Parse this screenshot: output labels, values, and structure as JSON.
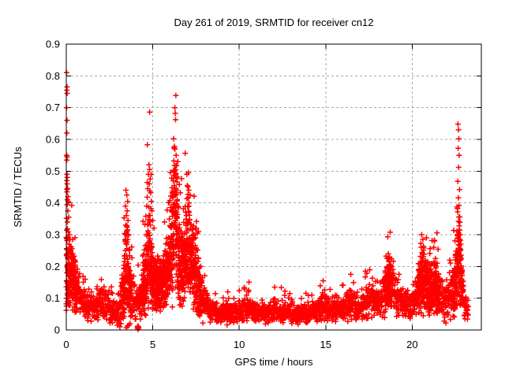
{
  "chart_data": {
    "type": "scatter",
    "title": "Day 261 of 2019, SRMTID for receiver cn12",
    "xlabel": "GPS time / hours",
    "ylabel": "SRMTID / TECUs",
    "xlim": [
      0,
      24
    ],
    "ylim": [
      0,
      0.9
    ],
    "xticks": [
      0,
      5,
      10,
      15,
      20
    ],
    "xtick_labels": [
      "0",
      "5",
      "10",
      "15",
      "20"
    ],
    "yticks": [
      0,
      0.1,
      0.2,
      0.3,
      0.4,
      0.5,
      0.6,
      0.7,
      0.8,
      0.9
    ],
    "ytick_labels": [
      "0",
      "0.1",
      "0.2",
      "0.3",
      "0.4",
      "0.5",
      "0.6",
      "0.7",
      "0.8",
      "0.9"
    ],
    "grid": true,
    "grid_color": "#a8a8a8",
    "legend": "none",
    "marker": "plus",
    "marker_color": "#ff0000",
    "series": [
      {
        "name": "SRMTID cn12",
        "seed": 261,
        "step": 0.01,
        "x_end": 23.25,
        "baseline_profile": [
          [
            0.0,
            0.2,
            0.18
          ],
          [
            0.15,
            0.17,
            0.13
          ],
          [
            0.35,
            0.17,
            0.11
          ],
          [
            0.55,
            0.13,
            0.09
          ],
          [
            0.8,
            0.09,
            0.06
          ],
          [
            1.2,
            0.075,
            0.05
          ],
          [
            1.6,
            0.07,
            0.05
          ],
          [
            2.0,
            0.085,
            0.06
          ],
          [
            2.5,
            0.065,
            0.05
          ],
          [
            3.0,
            0.05,
            0.045
          ],
          [
            3.3,
            0.09,
            0.09
          ],
          [
            3.5,
            0.2,
            0.2
          ],
          [
            3.7,
            0.13,
            0.12
          ],
          [
            3.9,
            0.08,
            0.05
          ],
          [
            4.3,
            0.09,
            0.06
          ],
          [
            4.6,
            0.17,
            0.15
          ],
          [
            4.8,
            0.26,
            0.2
          ],
          [
            5.0,
            0.17,
            0.12
          ],
          [
            5.3,
            0.12,
            0.08
          ],
          [
            5.6,
            0.15,
            0.1
          ],
          [
            5.9,
            0.19,
            0.13
          ],
          [
            6.15,
            0.3,
            0.24
          ],
          [
            6.3,
            0.37,
            0.26
          ],
          [
            6.5,
            0.23,
            0.18
          ],
          [
            6.7,
            0.19,
            0.13
          ],
          [
            6.9,
            0.24,
            0.15
          ],
          [
            7.1,
            0.27,
            0.15
          ],
          [
            7.35,
            0.19,
            0.13
          ],
          [
            7.6,
            0.15,
            0.12
          ],
          [
            7.9,
            0.09,
            0.07
          ],
          [
            8.3,
            0.06,
            0.04
          ],
          [
            9.0,
            0.05,
            0.03
          ],
          [
            9.6,
            0.055,
            0.035
          ],
          [
            10.2,
            0.06,
            0.04
          ],
          [
            10.6,
            0.07,
            0.045
          ],
          [
            11.0,
            0.05,
            0.032
          ],
          [
            11.6,
            0.05,
            0.032
          ],
          [
            12.0,
            0.06,
            0.04
          ],
          [
            12.6,
            0.055,
            0.038
          ],
          [
            13.2,
            0.05,
            0.035
          ],
          [
            13.6,
            0.045,
            0.03
          ],
          [
            14.1,
            0.055,
            0.038
          ],
          [
            14.6,
            0.065,
            0.045
          ],
          [
            14.9,
            0.075,
            0.055
          ],
          [
            15.3,
            0.06,
            0.04
          ],
          [
            15.7,
            0.065,
            0.045
          ],
          [
            16.1,
            0.07,
            0.05
          ],
          [
            16.5,
            0.085,
            0.06
          ],
          [
            17.0,
            0.08,
            0.055
          ],
          [
            17.5,
            0.09,
            0.062
          ],
          [
            18.0,
            0.085,
            0.06
          ],
          [
            18.4,
            0.11,
            0.08
          ],
          [
            18.7,
            0.14,
            0.09
          ],
          [
            19.0,
            0.11,
            0.07
          ],
          [
            19.4,
            0.085,
            0.055
          ],
          [
            19.8,
            0.075,
            0.05
          ],
          [
            20.2,
            0.09,
            0.065
          ],
          [
            20.5,
            0.15,
            0.11
          ],
          [
            20.7,
            0.16,
            0.12
          ],
          [
            21.0,
            0.12,
            0.085
          ],
          [
            21.3,
            0.14,
            0.09
          ],
          [
            21.6,
            0.11,
            0.08
          ],
          [
            21.9,
            0.08,
            0.055
          ],
          [
            22.2,
            0.1,
            0.07
          ],
          [
            22.45,
            0.12,
            0.09
          ],
          [
            22.6,
            0.2,
            0.14
          ],
          [
            22.7,
            0.23,
            0.15
          ],
          [
            22.85,
            0.15,
            0.1
          ],
          [
            23.0,
            0.085,
            0.05
          ],
          [
            23.25,
            0.065,
            0.04
          ]
        ],
        "outliers": [
          [
            0.02,
            0.81
          ],
          [
            0.04,
            0.765
          ],
          [
            0.03,
            0.755
          ],
          [
            0.05,
            0.745
          ],
          [
            0.02,
            0.7
          ],
          [
            0.04,
            0.66
          ],
          [
            0.03,
            0.62
          ],
          [
            0.02,
            0.55
          ],
          [
            0.05,
            0.545
          ],
          [
            0.03,
            0.535
          ],
          [
            0.04,
            0.49
          ],
          [
            0.06,
            0.48
          ],
          [
            0.03,
            0.47
          ],
          [
            0.05,
            0.46
          ],
          [
            0.08,
            0.445
          ],
          [
            0.04,
            0.435
          ],
          [
            0.1,
            0.42
          ],
          [
            0.06,
            0.41
          ],
          [
            0.12,
            0.405
          ],
          [
            0.05,
            0.395
          ],
          [
            0.09,
            0.375
          ],
          [
            0.14,
            0.355
          ],
          [
            0.07,
            0.34
          ],
          [
            0.18,
            0.3
          ],
          [
            0.1,
            0.29
          ],
          [
            0.22,
            0.285
          ],
          [
            0.16,
            0.27
          ],
          [
            0.28,
            0.262
          ],
          [
            0.33,
            0.256
          ],
          [
            0.25,
            0.248
          ],
          [
            0.38,
            0.24
          ],
          [
            0.31,
            0.228
          ],
          [
            0.42,
            0.215
          ],
          [
            0.2,
            0.195
          ],
          [
            0.47,
            0.185
          ],
          [
            0.52,
            0.165
          ],
          [
            0.58,
            0.15
          ],
          [
            0.01,
            0.1
          ],
          [
            0.0,
            0.082
          ],
          [
            3.45,
            0.44
          ],
          [
            3.5,
            0.425
          ],
          [
            3.55,
            0.405
          ],
          [
            3.42,
            0.39
          ],
          [
            3.52,
            0.375
          ],
          [
            3.47,
            0.36
          ],
          [
            3.57,
            0.345
          ],
          [
            3.44,
            0.33
          ],
          [
            3.54,
            0.315
          ],
          [
            3.6,
            0.3
          ],
          [
            3.4,
            0.285
          ],
          [
            3.5,
            0.27
          ],
          [
            4.13,
            0.006
          ],
          [
            4.15,
            0.006
          ],
          [
            4.17,
            0.006
          ],
          [
            4.14,
            0.012
          ],
          [
            4.16,
            0.012
          ],
          [
            4.15,
            0.002
          ],
          [
            4.18,
            0.008
          ],
          [
            4.12,
            0.01
          ],
          [
            4.78,
            0.52
          ],
          [
            4.82,
            0.505
          ],
          [
            4.75,
            0.49
          ],
          [
            4.85,
            0.475
          ],
          [
            4.8,
            0.46
          ],
          [
            4.72,
            0.445
          ],
          [
            4.88,
            0.432
          ],
          [
            4.68,
            0.418
          ],
          [
            4.92,
            0.405
          ],
          [
            4.65,
            0.39
          ],
          [
            4.95,
            0.375
          ],
          [
            4.6,
            0.358
          ],
          [
            5.0,
            0.345
          ],
          [
            4.55,
            0.332
          ],
          [
            6.28,
            0.7
          ],
          [
            6.3,
            0.682
          ],
          [
            6.32,
            0.662
          ],
          [
            6.25,
            0.578
          ],
          [
            6.35,
            0.55
          ],
          [
            6.22,
            0.532
          ],
          [
            6.38,
            0.518
          ],
          [
            6.27,
            0.503
          ],
          [
            6.33,
            0.49
          ],
          [
            6.2,
            0.478
          ],
          [
            6.4,
            0.466
          ],
          [
            6.24,
            0.455
          ],
          [
            6.36,
            0.444
          ],
          [
            6.3,
            0.432
          ],
          [
            6.18,
            0.42
          ],
          [
            6.42,
            0.41
          ],
          [
            6.26,
            0.4
          ],
          [
            6.34,
            0.39
          ],
          [
            7.0,
            0.455
          ],
          [
            7.08,
            0.44
          ],
          [
            7.04,
            0.427
          ],
          [
            6.98,
            0.413
          ],
          [
            7.1,
            0.4
          ],
          [
            7.02,
            0.388
          ],
          [
            7.06,
            0.373
          ],
          [
            6.95,
            0.36
          ],
          [
            7.12,
            0.348
          ],
          [
            7.0,
            0.335
          ],
          [
            7.52,
            0.32
          ],
          [
            7.58,
            0.305
          ],
          [
            7.48,
            0.29
          ],
          [
            2.95,
            0.015
          ],
          [
            3.1,
            0.01
          ],
          [
            7.9,
            0.022
          ],
          [
            9.3,
            0.016
          ],
          [
            10.55,
            0.125
          ],
          [
            12.05,
            0.135
          ],
          [
            12.65,
            0.122
          ],
          [
            13.4,
            0.018
          ],
          [
            14.85,
            0.155
          ],
          [
            16.45,
            0.175
          ],
          [
            17.3,
            0.185
          ],
          [
            18.62,
            0.24
          ],
          [
            18.7,
            0.228
          ],
          [
            18.66,
            0.215
          ],
          [
            18.75,
            0.205
          ],
          [
            20.55,
            0.3
          ],
          [
            20.62,
            0.285
          ],
          [
            20.5,
            0.272
          ],
          [
            20.68,
            0.258
          ],
          [
            20.58,
            0.244
          ],
          [
            21.3,
            0.28
          ],
          [
            21.25,
            0.26
          ],
          [
            21.35,
            0.225
          ],
          [
            21.45,
            0.21
          ],
          [
            21.85,
            0.028
          ],
          [
            21.95,
            0.022
          ],
          [
            22.65,
            0.648
          ],
          [
            22.68,
            0.63
          ],
          [
            22.7,
            0.602
          ],
          [
            22.66,
            0.572
          ],
          [
            22.72,
            0.55
          ],
          [
            22.69,
            0.512
          ],
          [
            22.64,
            0.468
          ],
          [
            22.74,
            0.442
          ],
          [
            22.67,
            0.416
          ],
          [
            22.71,
            0.392
          ],
          [
            22.63,
            0.372
          ],
          [
            22.75,
            0.356
          ],
          [
            22.68,
            0.342
          ],
          [
            22.72,
            0.328
          ],
          [
            22.6,
            0.312
          ],
          [
            22.78,
            0.3
          ],
          [
            22.66,
            0.29
          ],
          [
            22.7,
            0.278
          ]
        ]
      }
    ]
  }
}
